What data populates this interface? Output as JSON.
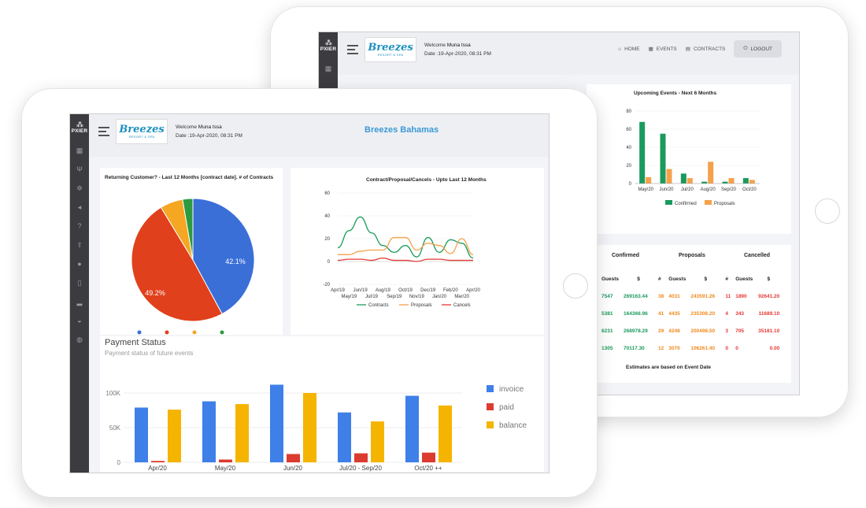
{
  "app": {
    "brand_name": "PXIER",
    "logo_text": "Breezes",
    "logo_sub": "RESORT & SPA"
  },
  "back": {
    "welcome_prefix": "Welcome",
    "user_name": "Muna Issa",
    "date": "Date :19-Apr-2020, 08:31 PM",
    "nav": {
      "home": "HOME",
      "events": "EVENTS",
      "contracts": "CONTRACTS",
      "logout": "LOGOUT"
    },
    "upcoming_chart": {
      "title": "Upcoming Events - Next 6 Months",
      "categories": [
        "May/20",
        "Jun/20",
        "Jul/20",
        "Aug/20",
        "Sep/20",
        "Oct/20"
      ],
      "y_ticks": [
        "0",
        "20",
        "40",
        "60",
        "80"
      ],
      "legend": [
        "Confirmed",
        "Proposals"
      ],
      "colors": [
        "#1a9a5c",
        "#f5a14a"
      ]
    },
    "estimates": {
      "group_headers": [
        "Confirmed",
        "Proposals",
        "Cancelled"
      ],
      "col_headers": [
        "Guests",
        "$",
        "#",
        "Guests",
        "$",
        "#",
        "Guests",
        "$"
      ],
      "rows": [
        [
          "7547",
          "269163.44",
          "38",
          "4031",
          "243591.26",
          "11",
          "1890",
          "92641.20"
        ],
        [
          "5381",
          "164366.96",
          "41",
          "4435",
          "235308.20",
          "4",
          "343",
          "11689.10"
        ],
        [
          "6231",
          "268978.29",
          "29",
          "4248",
          "200498.50",
          "3",
          "705",
          "35181.10"
        ],
        [
          "1305",
          "70117.30",
          "12",
          "3070",
          "106261.40",
          "0",
          "0",
          "0.00"
        ]
      ],
      "footnote": "Estimates are based on Event Date"
    }
  },
  "front": {
    "welcome_prefix": "Welcome",
    "user_name": "Muna Issa",
    "date": "Date :19-Apr-2020, 08:31 PM",
    "page_title": "Breezes Bahamas",
    "pie": {
      "title": "Returning Customer? - Last 12 Months [contract date]. # of Contracts",
      "label_a": "42.1%",
      "label_b": "49.2%"
    },
    "line_chart": {
      "title": "Contract/Proposal/Cancels - Upto Last 12 Months",
      "y_ticks": [
        "-20",
        "0",
        "20",
        "40",
        "60"
      ],
      "x_ticks_top": [
        "Apr/19",
        "Jun/19",
        "Aug/19",
        "Oct/19",
        "Dec/19",
        "Feb/20",
        "Apr/20"
      ],
      "x_ticks_bottom": [
        "May/19",
        "Jul/19",
        "Sep/19",
        "Nov/19",
        "Jan/20",
        "Mar/20"
      ],
      "legend": [
        "Contracts",
        "Proposals",
        "Cancels"
      ],
      "colors": [
        "#1a9a5c",
        "#f5a14a",
        "#e53935"
      ]
    },
    "payment": {
      "title": "Payment Status",
      "subtitle": "Payment status of future events",
      "y_ticks": [
        "0",
        "50K",
        "100K"
      ],
      "categories": [
        "Apr/20",
        "May/20",
        "Jun/20",
        "Jul/20 - Sep/20",
        "Oct/20 ++"
      ],
      "legend": [
        "invoice",
        "paid",
        "balance"
      ],
      "colors": [
        "#3f7fe8",
        "#dc3b2f",
        "#f5b400"
      ]
    }
  },
  "chart_data": [
    {
      "type": "bar",
      "title": "Upcoming Events - Next 6 Months",
      "categories": [
        "May/20",
        "Jun/20",
        "Jul/20",
        "Aug/20",
        "Sep/20",
        "Oct/20"
      ],
      "ylim": [
        0,
        80
      ],
      "series": [
        {
          "name": "Confirmed",
          "values": [
            68,
            55,
            11,
            2,
            2,
            6
          ]
        },
        {
          "name": "Proposals",
          "values": [
            7,
            16,
            6,
            24,
            6,
            4
          ]
        }
      ]
    },
    {
      "type": "pie",
      "title": "Returning Customer? - Last 12 Months [contract date]. # of Contracts",
      "values": [
        42.1,
        49.2,
        6.0,
        2.7
      ],
      "colors": [
        "#3a6fd8",
        "#e0401c",
        "#f5a623",
        "#2e9a3f"
      ]
    },
    {
      "type": "line",
      "title": "Contract/Proposal/Cancels - Upto Last 12 Months",
      "categories": [
        "Apr/19",
        "May/19",
        "Jun/19",
        "Jul/19",
        "Aug/19",
        "Sep/19",
        "Oct/19",
        "Nov/19",
        "Dec/19",
        "Jan/20",
        "Feb/20",
        "Mar/20",
        "Apr/20"
      ],
      "ylim": [
        -20,
        60
      ],
      "series": [
        {
          "name": "Contracts",
          "values": [
            12,
            27,
            39,
            25,
            14,
            8,
            14,
            4,
            21,
            8,
            19,
            16,
            3
          ]
        },
        {
          "name": "Proposals",
          "values": [
            6,
            6,
            9,
            10,
            10,
            21,
            21,
            10,
            16,
            14,
            7,
            20,
            6
          ]
        },
        {
          "name": "Cancels",
          "values": [
            1,
            2,
            2,
            1,
            3,
            1,
            1,
            0,
            2,
            2,
            1,
            1,
            1
          ]
        }
      ]
    },
    {
      "type": "bar",
      "title": "Payment Status",
      "categories": [
        "Apr/20",
        "May/20",
        "Jun/20",
        "Jul/20 - Sep/20",
        "Oct/20 ++"
      ],
      "ylim": [
        0,
        120000
      ],
      "series": [
        {
          "name": "invoice",
          "values": [
            79000,
            88000,
            112000,
            72000,
            96000
          ]
        },
        {
          "name": "paid",
          "values": [
            2000,
            4000,
            12000,
            13000,
            14000
          ]
        },
        {
          "name": "balance",
          "values": [
            76000,
            84000,
            100000,
            59000,
            82000
          ]
        }
      ]
    }
  ]
}
